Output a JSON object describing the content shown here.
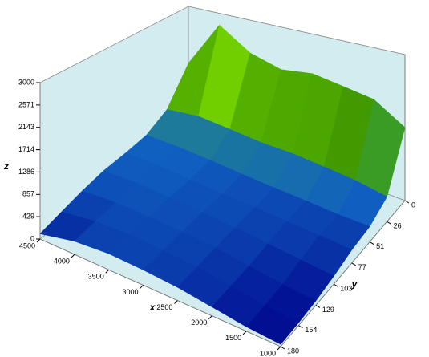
{
  "chart_data": {
    "type": "surface",
    "x_label": "x",
    "y_label": "y",
    "z_label": "z",
    "x": [
      4500,
      4000,
      3500,
      3000,
      2500,
      2000,
      1500,
      1000
    ],
    "y": [
      0,
      26,
      51,
      77,
      103,
      129,
      154,
      180
    ],
    "z": [
      [
        1500,
        2700,
        2200,
        2000,
        2100,
        2000,
        1900,
        1500
      ],
      [
        700,
        800,
        750,
        700,
        700,
        650,
        600,
        500
      ],
      [
        450,
        450,
        420,
        380,
        350,
        330,
        300,
        300
      ],
      [
        400,
        420,
        380,
        350,
        330,
        300,
        280,
        250
      ],
      [
        380,
        400,
        370,
        340,
        300,
        250,
        200,
        150
      ],
      [
        300,
        350,
        340,
        320,
        280,
        200,
        120,
        80
      ],
      [
        200,
        300,
        320,
        300,
        260,
        180,
        90,
        50
      ],
      [
        100,
        250,
        300,
        280,
        240,
        160,
        80,
        40
      ]
    ],
    "xlim": [
      4500,
      1000
    ],
    "ylim": [
      0,
      180
    ],
    "zlim": [
      0,
      3000
    ],
    "xticks": [
      4500,
      4000,
      3500,
      3000,
      2500,
      2000,
      1500,
      1000
    ],
    "yticks": [
      0,
      26,
      51,
      77,
      103,
      129,
      154,
      180
    ],
    "zticks": [
      0,
      429,
      857,
      1286,
      1714,
      2143,
      2571,
      3000
    ],
    "colorscale": [
      "#00008b",
      "#1060c0",
      "#30a060",
      "#409a00",
      "#80e000",
      "#f0f000",
      "#ff8000",
      "#e00000"
    ],
    "pane_color": "#d2ecf0"
  }
}
